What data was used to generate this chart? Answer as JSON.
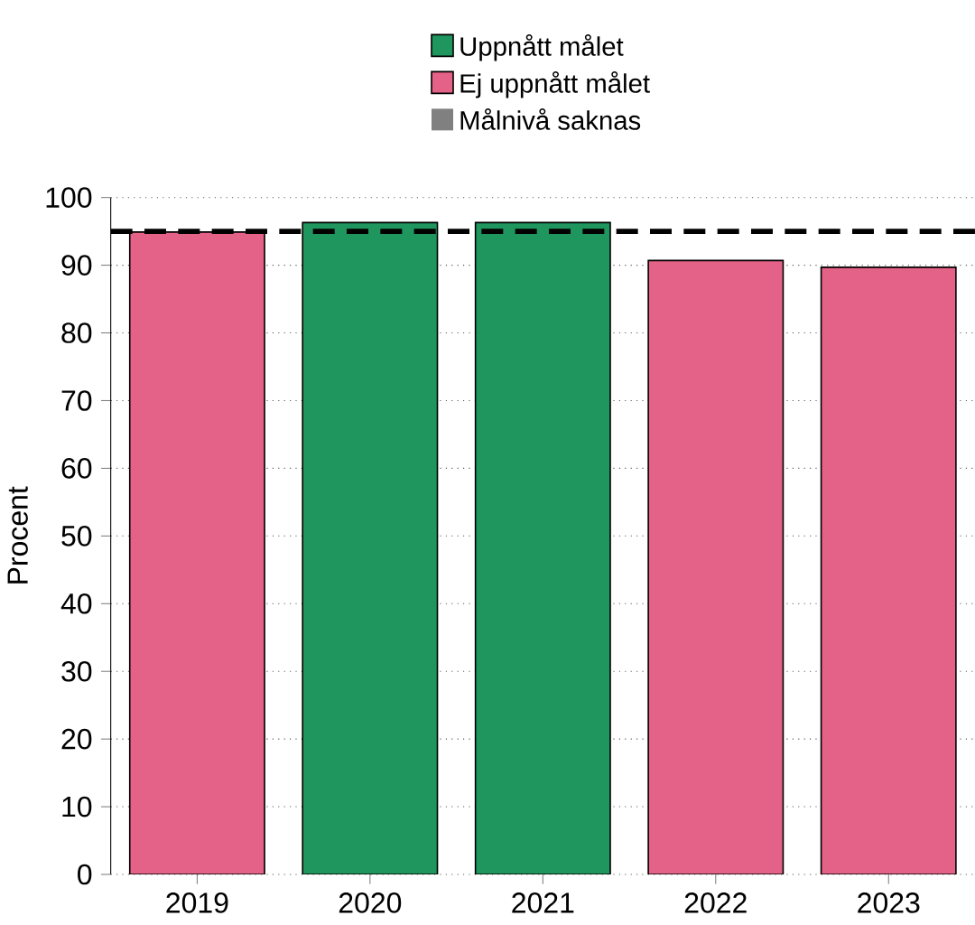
{
  "chart_data": {
    "type": "bar",
    "ylabel": "Procent",
    "categories": [
      "2019",
      "2020",
      "2021",
      "2022",
      "2023"
    ],
    "series": [
      {
        "name": "Uppnått målet",
        "color": "#1e965e",
        "values": [
          null,
          96.3,
          96.3,
          null,
          null
        ]
      },
      {
        "name": "Ej uppnått målet",
        "color": "#e46287",
        "values": [
          94.9,
          null,
          null,
          90.7,
          89.7
        ]
      },
      {
        "name": "Målnivå saknas",
        "color": "#808080",
        "values": [
          null,
          null,
          null,
          null,
          null
        ]
      }
    ],
    "ylim": [
      0,
      100
    ],
    "yticks": [
      0,
      10,
      20,
      30,
      40,
      50,
      60,
      70,
      80,
      90,
      100
    ],
    "grid": "y",
    "legend": "top",
    "ref_lines": [
      {
        "axis": "y",
        "value": 95,
        "color": "#000000",
        "line_style": "dashed"
      }
    ]
  }
}
